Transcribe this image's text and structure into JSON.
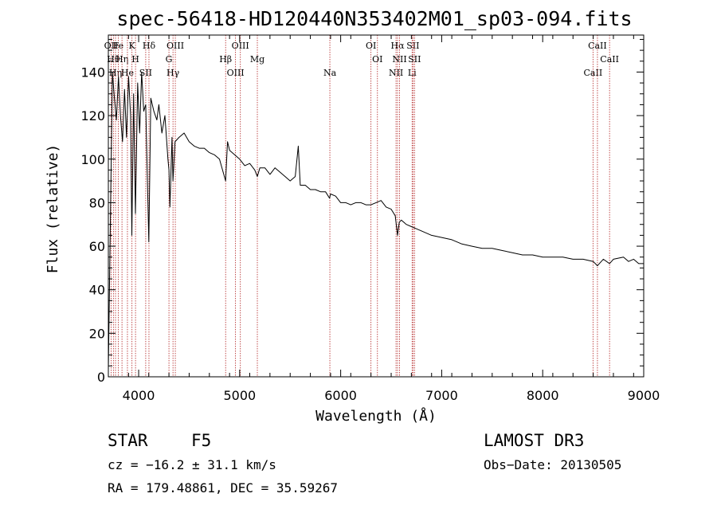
{
  "title": "spec-56418-HD120440N353402M01_sp03-094.fits",
  "info": {
    "object_class": "STAR",
    "subclass": "F5",
    "survey": "LAMOST DR3",
    "cz": "cz = −16.2 ± 31.1 km/s",
    "obs_date": "Obs−Date: 20130505",
    "radec": "RA = 179.48861, DEC =  35.59267"
  },
  "chart_data": {
    "type": "line",
    "title": "spec-56418-HD120440N353402M01_sp03-094.fits",
    "xlabel": "Wavelength (Å)",
    "ylabel": "Flux (relative)",
    "xlim": [
      3700,
      9000
    ],
    "ylim": [
      0,
      157
    ],
    "x_ticks": [
      4000,
      5000,
      6000,
      7000,
      8000,
      9000
    ],
    "x_tick_labels": [
      "4000",
      "5000",
      "6000",
      "7000",
      "8000",
      "9000"
    ],
    "y_ticks": [
      0,
      20,
      40,
      60,
      80,
      100,
      120,
      140
    ],
    "y_tick_labels": [
      "0",
      "20",
      "40",
      "60",
      "80",
      "100",
      "120",
      "140"
    ],
    "line_color": "#000000",
    "marker_color": "#b22222",
    "spectrum": {
      "x": [
        3700,
        3720,
        3740,
        3760,
        3780,
        3800,
        3820,
        3840,
        3860,
        3880,
        3900,
        3920,
        3933,
        3950,
        3968,
        3990,
        4010,
        4030,
        4050,
        4070,
        4101,
        4120,
        4150,
        4180,
        4200,
        4230,
        4260,
        4290,
        4300,
        4310,
        4330,
        4340,
        4360,
        4400,
        4450,
        4500,
        4550,
        4600,
        4650,
        4700,
        4750,
        4800,
        4861,
        4880,
        4900,
        4950,
        5000,
        5050,
        5100,
        5150,
        5175,
        5200,
        5250,
        5300,
        5350,
        5400,
        5450,
        5500,
        5550,
        5580,
        5600,
        5650,
        5700,
        5750,
        5800,
        5850,
        5890,
        5900,
        5950,
        6000,
        6050,
        6100,
        6150,
        6200,
        6250,
        6300,
        6350,
        6400,
        6450,
        6500,
        6540,
        6563,
        6580,
        6600,
        6650,
        6700,
        6750,
        6800,
        6900,
        7000,
        7100,
        7200,
        7300,
        7400,
        7500,
        7600,
        7700,
        7800,
        7900,
        8000,
        8100,
        8200,
        8300,
        8400,
        8500,
        8542,
        8600,
        8662,
        8700,
        8800,
        8850,
        8900,
        8950,
        9000
      ],
      "y": [
        3,
        70,
        140,
        128,
        118,
        138,
        120,
        108,
        132,
        110,
        138,
        120,
        65,
        130,
        75,
        135,
        112,
        140,
        122,
        125,
        62,
        128,
        122,
        118,
        125,
        112,
        120,
        100,
        95,
        78,
        110,
        90,
        108,
        110,
        112,
        108,
        106,
        105,
        105,
        103,
        102,
        100,
        90,
        108,
        104,
        102,
        100,
        97,
        98,
        95,
        92,
        96,
        96,
        93,
        96,
        94,
        92,
        90,
        92,
        106,
        88,
        88,
        86,
        86,
        85,
        85,
        82,
        84,
        83,
        80,
        80,
        79,
        80,
        80,
        79,
        79,
        80,
        81,
        78,
        77,
        74,
        65,
        71,
        72,
        70,
        69,
        68,
        67,
        65,
        64,
        63,
        61,
        60,
        59,
        59,
        58,
        57,
        56,
        56,
        55,
        55,
        55,
        54,
        54,
        53,
        51,
        54,
        52,
        54,
        55,
        53,
        54,
        52,
        52
      ]
    },
    "lines": [
      {
        "x": 3727,
        "label": "OII"
      },
      {
        "x": 3750,
        "label": "Hθ"
      },
      {
        "x": 3771,
        "label": "Hη"
      },
      {
        "x": 3798,
        "label": "Fe"
      },
      {
        "x": 3835,
        "label": "Hη"
      },
      {
        "x": 3889,
        "label": "He"
      },
      {
        "x": 3934,
        "label": "K"
      },
      {
        "x": 3969,
        "label": "H"
      },
      {
        "x": 4070,
        "label": "SII"
      },
      {
        "x": 4102,
        "label": "Hδ"
      },
      {
        "x": 4300,
        "label": "G"
      },
      {
        "x": 4340,
        "label": "Hγ"
      },
      {
        "x": 4363,
        "label": "OIII"
      },
      {
        "x": 4861,
        "label": "Hβ"
      },
      {
        "x": 4959,
        "label": "OIII"
      },
      {
        "x": 5007,
        "label": "OIII"
      },
      {
        "x": 5175,
        "label": "Mg"
      },
      {
        "x": 5893,
        "label": "Na"
      },
      {
        "x": 6300,
        "label": "OI"
      },
      {
        "x": 6364,
        "label": "OI"
      },
      {
        "x": 6548,
        "label": "NII"
      },
      {
        "x": 6563,
        "label": "Hα"
      },
      {
        "x": 6583,
        "label": "NII"
      },
      {
        "x": 6707,
        "label": "Li"
      },
      {
        "x": 6716,
        "label": "SII"
      },
      {
        "x": 6731,
        "label": "SII"
      },
      {
        "x": 8498,
        "label": "CaII"
      },
      {
        "x": 8542,
        "label": "CaII"
      },
      {
        "x": 8662,
        "label": "CaII"
      }
    ]
  }
}
